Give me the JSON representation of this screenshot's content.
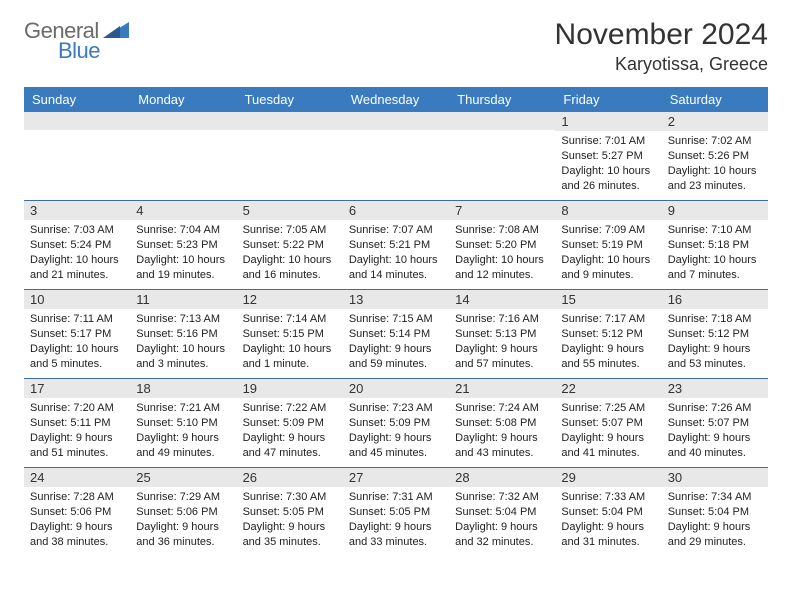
{
  "logo": {
    "top": "General",
    "bottom": "Blue",
    "top_color": "#6b6b6b",
    "bottom_color": "#3a7bbf"
  },
  "title": {
    "main": "November 2024",
    "sub": "Karyotissa, Greece"
  },
  "colors": {
    "header_bg": "#3a7bbf",
    "header_text": "#ffffff",
    "daynum_bg": "#e8e8e8",
    "week_border": "#3a6fa5",
    "text": "#222222"
  },
  "layout": {
    "columns": 7,
    "rows": 5,
    "label_fontsize": 11,
    "daynum_fontsize": 13,
    "header_fontsize": 13
  },
  "day_headers": [
    "Sunday",
    "Monday",
    "Tuesday",
    "Wednesday",
    "Thursday",
    "Friday",
    "Saturday"
  ],
  "weeks": [
    [
      null,
      null,
      null,
      null,
      null,
      {
        "n": "1",
        "sunrise": "Sunrise: 7:01 AM",
        "sunset": "Sunset: 5:27 PM",
        "d1": "Daylight: 10 hours",
        "d2": "and 26 minutes."
      },
      {
        "n": "2",
        "sunrise": "Sunrise: 7:02 AM",
        "sunset": "Sunset: 5:26 PM",
        "d1": "Daylight: 10 hours",
        "d2": "and 23 minutes."
      }
    ],
    [
      {
        "n": "3",
        "sunrise": "Sunrise: 7:03 AM",
        "sunset": "Sunset: 5:24 PM",
        "d1": "Daylight: 10 hours",
        "d2": "and 21 minutes."
      },
      {
        "n": "4",
        "sunrise": "Sunrise: 7:04 AM",
        "sunset": "Sunset: 5:23 PM",
        "d1": "Daylight: 10 hours",
        "d2": "and 19 minutes."
      },
      {
        "n": "5",
        "sunrise": "Sunrise: 7:05 AM",
        "sunset": "Sunset: 5:22 PM",
        "d1": "Daylight: 10 hours",
        "d2": "and 16 minutes."
      },
      {
        "n": "6",
        "sunrise": "Sunrise: 7:07 AM",
        "sunset": "Sunset: 5:21 PM",
        "d1": "Daylight: 10 hours",
        "d2": "and 14 minutes."
      },
      {
        "n": "7",
        "sunrise": "Sunrise: 7:08 AM",
        "sunset": "Sunset: 5:20 PM",
        "d1": "Daylight: 10 hours",
        "d2": "and 12 minutes."
      },
      {
        "n": "8",
        "sunrise": "Sunrise: 7:09 AM",
        "sunset": "Sunset: 5:19 PM",
        "d1": "Daylight: 10 hours",
        "d2": "and 9 minutes."
      },
      {
        "n": "9",
        "sunrise": "Sunrise: 7:10 AM",
        "sunset": "Sunset: 5:18 PM",
        "d1": "Daylight: 10 hours",
        "d2": "and 7 minutes."
      }
    ],
    [
      {
        "n": "10",
        "sunrise": "Sunrise: 7:11 AM",
        "sunset": "Sunset: 5:17 PM",
        "d1": "Daylight: 10 hours",
        "d2": "and 5 minutes."
      },
      {
        "n": "11",
        "sunrise": "Sunrise: 7:13 AM",
        "sunset": "Sunset: 5:16 PM",
        "d1": "Daylight: 10 hours",
        "d2": "and 3 minutes."
      },
      {
        "n": "12",
        "sunrise": "Sunrise: 7:14 AM",
        "sunset": "Sunset: 5:15 PM",
        "d1": "Daylight: 10 hours",
        "d2": "and 1 minute."
      },
      {
        "n": "13",
        "sunrise": "Sunrise: 7:15 AM",
        "sunset": "Sunset: 5:14 PM",
        "d1": "Daylight: 9 hours",
        "d2": "and 59 minutes."
      },
      {
        "n": "14",
        "sunrise": "Sunrise: 7:16 AM",
        "sunset": "Sunset: 5:13 PM",
        "d1": "Daylight: 9 hours",
        "d2": "and 57 minutes."
      },
      {
        "n": "15",
        "sunrise": "Sunrise: 7:17 AM",
        "sunset": "Sunset: 5:12 PM",
        "d1": "Daylight: 9 hours",
        "d2": "and 55 minutes."
      },
      {
        "n": "16",
        "sunrise": "Sunrise: 7:18 AM",
        "sunset": "Sunset: 5:12 PM",
        "d1": "Daylight: 9 hours",
        "d2": "and 53 minutes."
      }
    ],
    [
      {
        "n": "17",
        "sunrise": "Sunrise: 7:20 AM",
        "sunset": "Sunset: 5:11 PM",
        "d1": "Daylight: 9 hours",
        "d2": "and 51 minutes."
      },
      {
        "n": "18",
        "sunrise": "Sunrise: 7:21 AM",
        "sunset": "Sunset: 5:10 PM",
        "d1": "Daylight: 9 hours",
        "d2": "and 49 minutes."
      },
      {
        "n": "19",
        "sunrise": "Sunrise: 7:22 AM",
        "sunset": "Sunset: 5:09 PM",
        "d1": "Daylight: 9 hours",
        "d2": "and 47 minutes."
      },
      {
        "n": "20",
        "sunrise": "Sunrise: 7:23 AM",
        "sunset": "Sunset: 5:09 PM",
        "d1": "Daylight: 9 hours",
        "d2": "and 45 minutes."
      },
      {
        "n": "21",
        "sunrise": "Sunrise: 7:24 AM",
        "sunset": "Sunset: 5:08 PM",
        "d1": "Daylight: 9 hours",
        "d2": "and 43 minutes."
      },
      {
        "n": "22",
        "sunrise": "Sunrise: 7:25 AM",
        "sunset": "Sunset: 5:07 PM",
        "d1": "Daylight: 9 hours",
        "d2": "and 41 minutes."
      },
      {
        "n": "23",
        "sunrise": "Sunrise: 7:26 AM",
        "sunset": "Sunset: 5:07 PM",
        "d1": "Daylight: 9 hours",
        "d2": "and 40 minutes."
      }
    ],
    [
      {
        "n": "24",
        "sunrise": "Sunrise: 7:28 AM",
        "sunset": "Sunset: 5:06 PM",
        "d1": "Daylight: 9 hours",
        "d2": "and 38 minutes."
      },
      {
        "n": "25",
        "sunrise": "Sunrise: 7:29 AM",
        "sunset": "Sunset: 5:06 PM",
        "d1": "Daylight: 9 hours",
        "d2": "and 36 minutes."
      },
      {
        "n": "26",
        "sunrise": "Sunrise: 7:30 AM",
        "sunset": "Sunset: 5:05 PM",
        "d1": "Daylight: 9 hours",
        "d2": "and 35 minutes."
      },
      {
        "n": "27",
        "sunrise": "Sunrise: 7:31 AM",
        "sunset": "Sunset: 5:05 PM",
        "d1": "Daylight: 9 hours",
        "d2": "and 33 minutes."
      },
      {
        "n": "28",
        "sunrise": "Sunrise: 7:32 AM",
        "sunset": "Sunset: 5:04 PM",
        "d1": "Daylight: 9 hours",
        "d2": "and 32 minutes."
      },
      {
        "n": "29",
        "sunrise": "Sunrise: 7:33 AM",
        "sunset": "Sunset: 5:04 PM",
        "d1": "Daylight: 9 hours",
        "d2": "and 31 minutes."
      },
      {
        "n": "30",
        "sunrise": "Sunrise: 7:34 AM",
        "sunset": "Sunset: 5:04 PM",
        "d1": "Daylight: 9 hours",
        "d2": "and 29 minutes."
      }
    ]
  ]
}
